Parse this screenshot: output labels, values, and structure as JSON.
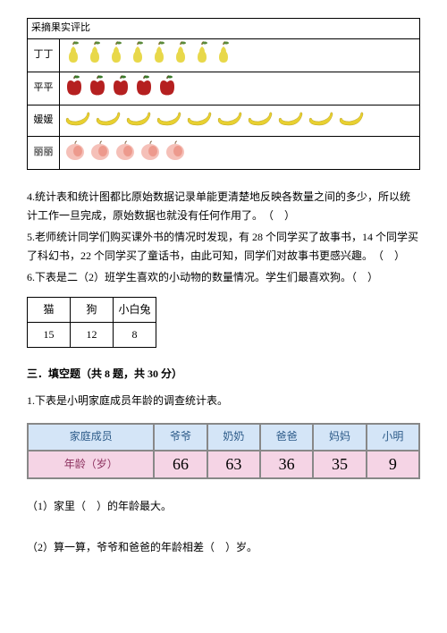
{
  "fruit_table": {
    "title": "采摘果实评比",
    "rows": [
      {
        "name": "丁丁",
        "fruit": "pear",
        "count": 8,
        "color": "#e8d84a",
        "leaf": "#5a8a3a"
      },
      {
        "name": "平平",
        "fruit": "apple",
        "count": 5,
        "color": "#b52020",
        "leaf": "#3a7a2a"
      },
      {
        "name": "媛媛",
        "fruit": "banana",
        "count": 10,
        "color": "#e8d030"
      },
      {
        "name": "丽丽",
        "fruit": "peach",
        "count": 5,
        "color": "#f5c0b8",
        "blush": "#e88070"
      }
    ]
  },
  "q4": "4.统计表和统计图都比原始数据记录单能更清楚地反映各数量之间的多少，所以统计工作一旦完成，原始数据也就没有任何作用了。　（　）",
  "q5": "5.老师统计同学们购买课外书的情况时发现，有 28 个同学买了故事书，14 个同学买了科幻书，22 个同学买了童话书，由此可知，同学们对故事书更感兴趣。　（　）",
  "q6": "6.下表是二（2）班学生喜欢的小动物的数量情况。学生们最喜欢狗。（　）",
  "animal_table": {
    "headers": [
      "猫",
      "狗",
      "小白兔"
    ],
    "values": [
      "15",
      "12",
      "8"
    ]
  },
  "section3_title": "三．填空题（共 8 题，共 30 分）",
  "q3_1": "1.下表是小明家庭成员年龄的调查统计表。",
  "age_table": {
    "header_bg": "#d4e5f7",
    "data_bg": "#f5d4e5",
    "border_color": "#888888",
    "headers": [
      "家庭成员",
      "爷爷",
      "奶奶",
      "爸爸",
      "妈妈",
      "小明"
    ],
    "row_label": "年龄（岁）",
    "values": [
      "66",
      "63",
      "36",
      "35",
      "9"
    ]
  },
  "sub1": "（1）家里（　）的年龄最大。",
  "sub2": "（2）算一算，爷爷和爸爸的年龄相差（　）岁。"
}
